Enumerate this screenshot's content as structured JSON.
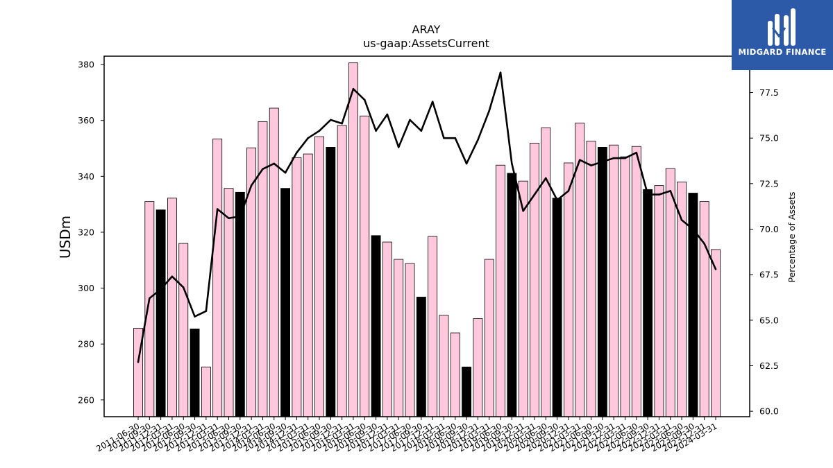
{
  "brand": {
    "name": "MIDGARD FINANCE",
    "logo_icon": "midgard-logo-icon",
    "bg_color": "#2d5aa8"
  },
  "chart_data": {
    "type": "bar",
    "title": "ARAY",
    "subtitle": "us-gaap:AssetsCurrent",
    "ylabel": "USDm",
    "y2label": "Percentage of Assets",
    "ylim": [
      254,
      383
    ],
    "y2lim": [
      59.7,
      79.5
    ],
    "yticks": [
      260,
      280,
      300,
      320,
      340,
      360,
      380
    ],
    "y2ticks": [
      "60.0",
      "62.5",
      "65.0",
      "67.5",
      "70.0",
      "72.5",
      "75.0",
      "77.5"
    ],
    "bar_color": "#ffc8dd",
    "highlight_color": "#000000",
    "line_color": "#000000",
    "grid": false,
    "categories": [
      "2011-06-30",
      "2011-09-30",
      "2011-12-31",
      "2012-03-31",
      "2012-06-30",
      "2012-09-30",
      "2012-12-31",
      "2013-03-31",
      "2013-06-30",
      "2013-09-30",
      "2013-12-31",
      "2014-03-31",
      "2014-06-30",
      "2014-09-30",
      "2014-12-31",
      "2015-03-31",
      "2015-06-30",
      "2015-09-30",
      "2015-12-31",
      "2016-03-31",
      "2016-06-30",
      "2016-09-30",
      "2016-12-31",
      "2017-03-31",
      "2017-06-30",
      "2017-09-30",
      "2017-12-31",
      "2018-03-31",
      "2018-06-30",
      "2018-09-30",
      "2018-12-31",
      "2019-03-31",
      "2019-06-30",
      "2019-09-30",
      "2019-12-31",
      "2020-03-31",
      "2020-06-30",
      "2020-09-30",
      "2020-12-31",
      "2021-03-31",
      "2021-06-30",
      "2021-09-30",
      "2021-12-31",
      "2022-03-31",
      "2022-06-30",
      "2022-09-30",
      "2022-12-31",
      "2023-03-31",
      "2023-06-30",
      "2023-09-30",
      "2023-12-31",
      "2024-03-31"
    ],
    "series": [
      {
        "type": "bar",
        "values": [
          285.6,
          331,
          328,
          332.2,
          316,
          285.4,
          271.8,
          353.4,
          335.7,
          334.3,
          350.2,
          359.6,
          364.4,
          335.7,
          346.7,
          348,
          354.2,
          350.4,
          358.2,
          380.6,
          361.6,
          318.8,
          316.5,
          310.3,
          308.8,
          296.8,
          318.5,
          290.3,
          284,
          271.8,
          289.1,
          310.3,
          344,
          341.1,
          338.3,
          351.9,
          357.4,
          332.2,
          344.8,
          359.1,
          352.6,
          350.4,
          351.2,
          347,
          350.7,
          335.3,
          336.7,
          342.8,
          338,
          334,
          331,
          313.8
        ],
        "highlight": [
          false,
          false,
          true,
          false,
          false,
          true,
          false,
          false,
          false,
          true,
          false,
          false,
          false,
          true,
          false,
          false,
          false,
          true,
          false,
          false,
          false,
          true,
          false,
          false,
          false,
          true,
          false,
          false,
          false,
          true,
          false,
          false,
          false,
          true,
          false,
          false,
          false,
          true,
          false,
          false,
          false,
          true,
          false,
          false,
          false,
          true,
          false,
          false,
          false,
          true,
          false,
          false
        ]
      },
      {
        "type": "line",
        "axis": "right",
        "values": [
          62.7,
          66.2,
          66.7,
          67.4,
          66.8,
          65.2,
          65.5,
          71.1,
          70.6,
          70.7,
          72.4,
          73.3,
          73.6,
          73.1,
          74.2,
          75,
          75.4,
          76,
          75.8,
          77.7,
          77.1,
          75.4,
          76.3,
          74.5,
          76,
          75.4,
          77,
          75,
          75,
          73.6,
          74.9,
          76.5,
          78.6,
          73.6,
          71,
          71.9,
          72.8,
          71.6,
          72.1,
          73.8,
          73.5,
          73.7,
          73.9,
          73.9,
          74.2,
          71.9,
          71.9,
          72.1,
          70.5,
          70,
          69.2,
          67.8
        ]
      }
    ]
  }
}
